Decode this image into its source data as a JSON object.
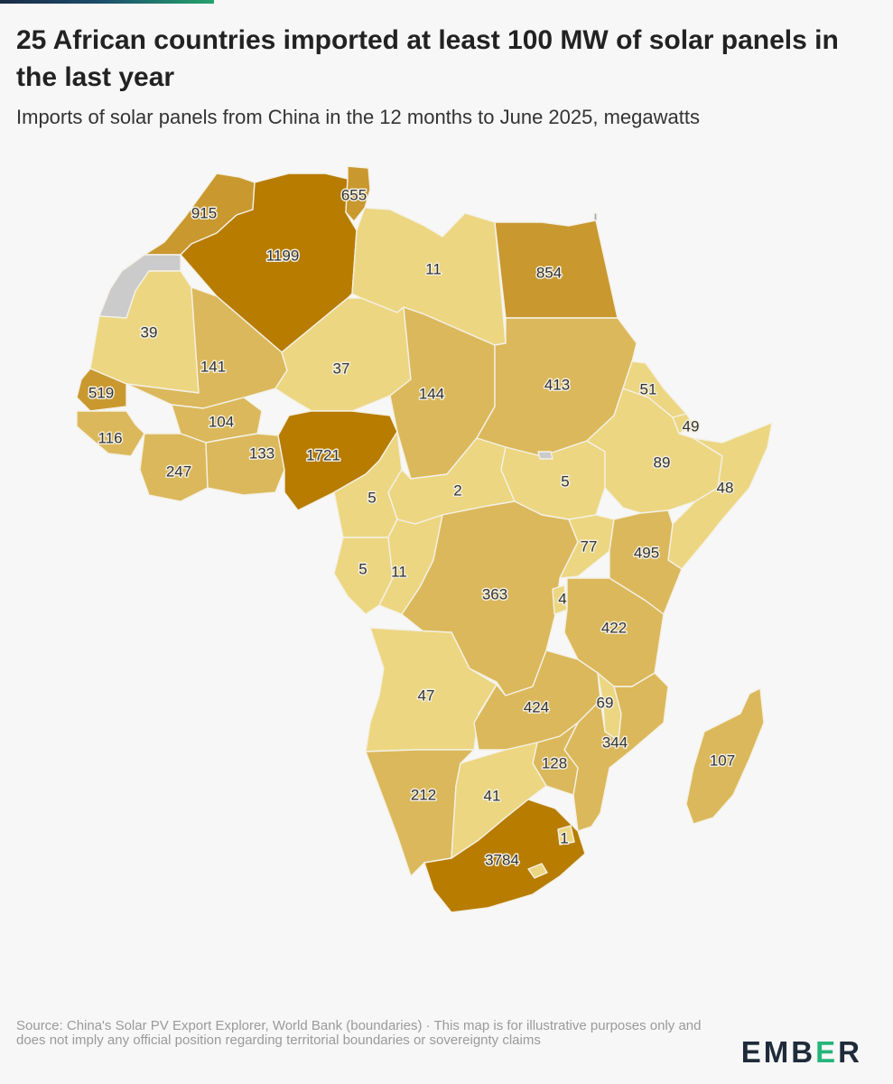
{
  "title": "25 African countries imported at least 100 MW of solar panels in the last year",
  "subtitle": "Imports of solar panels from China in the 12 months to June 2025, megawatts",
  "source": "Source: China's Solar PV Export Explorer, World Bank (boundaries) · This map is for illustrative purposes only and does not imply any official position regarding territorial boundaries or sovereignty claims",
  "logo": {
    "part1": "EMB",
    "part2": "E",
    "part3": "R"
  },
  "colors": {
    "no_data": "#cbcbcb",
    "scale": [
      "#ecd681",
      "#dbb85b",
      "#c9982f",
      "#b87c00"
    ],
    "background": "#f7f7f7"
  },
  "countries": [
    {
      "name": "Morocco",
      "value": 915
    },
    {
      "name": "Algeria",
      "value": 1199
    },
    {
      "name": "Tunisia",
      "value": 655
    },
    {
      "name": "Libya",
      "value": 11
    },
    {
      "name": "Egypt",
      "value": 854
    },
    {
      "name": "Western Sahara",
      "value": null
    },
    {
      "name": "Mauritania",
      "value": 39
    },
    {
      "name": "Mali",
      "value": 141
    },
    {
      "name": "Niger",
      "value": 37
    },
    {
      "name": "Chad",
      "value": 144
    },
    {
      "name": "Sudan",
      "value": 413
    },
    {
      "name": "Eritrea",
      "value": 51
    },
    {
      "name": "Djibouti",
      "value": 49
    },
    {
      "name": "Senegal",
      "value": 519
    },
    {
      "name": "Burkina Faso",
      "value": 104
    },
    {
      "name": "Guinea",
      "value": 116
    },
    {
      "name": "Cote d'Ivoire",
      "value": 247
    },
    {
      "name": "Ghana / Togo / Benin",
      "value": 133
    },
    {
      "name": "Nigeria",
      "value": 1721
    },
    {
      "name": "Cameroon",
      "value": 5
    },
    {
      "name": "Central African Republic",
      "value": 2
    },
    {
      "name": "South Sudan",
      "value": 5
    },
    {
      "name": "Abyei",
      "value": null
    },
    {
      "name": "Ethiopia",
      "value": 89
    },
    {
      "name": "Somalia",
      "value": 48
    },
    {
      "name": "Gabon",
      "value": 5
    },
    {
      "name": "Congo",
      "value": 11
    },
    {
      "name": "DR Congo",
      "value": 363
    },
    {
      "name": "Uganda",
      "value": 77
    },
    {
      "name": "Kenya",
      "value": 495
    },
    {
      "name": "Burundi",
      "value": 4
    },
    {
      "name": "Tanzania",
      "value": 422
    },
    {
      "name": "Angola",
      "value": 47
    },
    {
      "name": "Zambia",
      "value": 424
    },
    {
      "name": "Malawi",
      "value": 69
    },
    {
      "name": "Mozambique",
      "value": 344
    },
    {
      "name": "Zimbabwe",
      "value": 128
    },
    {
      "name": "Madagascar",
      "value": 107
    },
    {
      "name": "Namibia",
      "value": 212
    },
    {
      "name": "Botswana",
      "value": 41
    },
    {
      "name": "South Africa",
      "value": 3784
    },
    {
      "name": "Eswatini",
      "value": 1
    }
  ]
}
